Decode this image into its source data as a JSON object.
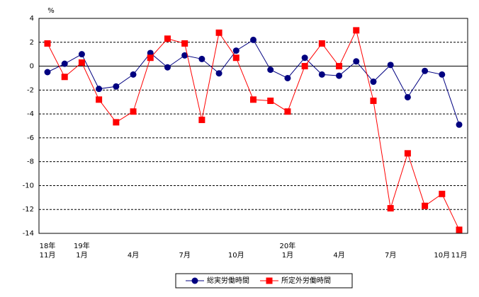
{
  "chart_data": {
    "type": "line",
    "unit_label": "%",
    "categories": [
      "11月",
      null,
      "1月",
      null,
      null,
      "4月",
      null,
      null,
      "7月",
      null,
      null,
      "10月",
      null,
      null,
      "1月",
      null,
      null,
      "4月",
      null,
      null,
      "7月",
      null,
      null,
      "10月",
      "11月"
    ],
    "year_labels": [
      "18年",
      null,
      "19年",
      null,
      null,
      null,
      null,
      null,
      null,
      null,
      null,
      null,
      null,
      null,
      "20年",
      null,
      null,
      null,
      null,
      null,
      null,
      null,
      null,
      null,
      null
    ],
    "series": [
      {
        "name": "総実労働時間",
        "color": "#000080",
        "marker": "circle",
        "values": [
          -0.5,
          0.2,
          1.0,
          -1.9,
          -1.7,
          -0.7,
          1.1,
          -0.1,
          0.9,
          0.6,
          -0.6,
          1.3,
          2.2,
          -0.3,
          -1.0,
          0.7,
          -0.7,
          -0.8,
          0.4,
          -1.3,
          0.1,
          -2.6,
          -0.4,
          -0.7,
          -4.9
        ]
      },
      {
        "name": "所定外労働時間",
        "color": "#ff0000",
        "marker": "square",
        "values": [
          1.9,
          -0.9,
          0.3,
          -2.8,
          -4.7,
          -3.8,
          0.7,
          2.3,
          1.9,
          -4.5,
          2.8,
          0.7,
          -2.8,
          -2.9,
          -3.8,
          0.0,
          1.9,
          0.0,
          3.0,
          -2.9,
          -11.9,
          -7.3,
          -11.7,
          -10.7,
          -13.7
        ]
      }
    ],
    "ylim": [
      -14,
      4
    ],
    "yticks": [
      4,
      2,
      0,
      -2,
      -4,
      -6,
      -8,
      -10,
      -12,
      -14
    ],
    "grid": true,
    "legend": "bottom"
  }
}
